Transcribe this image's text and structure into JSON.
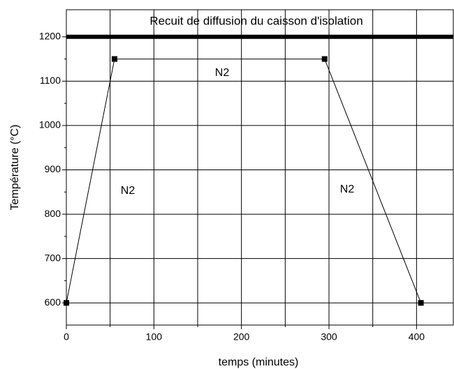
{
  "chart_data": {
    "type": "line",
    "title": "Recuit de diffusion du caisson d'isolation",
    "xlabel": "temps (minutes)",
    "ylabel": "Température (°C)",
    "x": [
      0,
      55,
      295,
      405
    ],
    "series": [
      {
        "name": "N2",
        "color": "#000000",
        "values": [
          600,
          1150,
          1150,
          600
        ]
      }
    ],
    "annotations": [
      "N2",
      "N2",
      "N2"
    ],
    "xlim": [
      0,
      442
    ],
    "xticks": [
      0,
      100,
      200,
      300,
      400
    ],
    "xminorticks": [
      50,
      150,
      250,
      350
    ],
    "ylim": [
      550,
      1261
    ],
    "yticks": [
      600,
      700,
      800,
      900,
      1000,
      1100,
      1200
    ],
    "yminorticks": [
      650,
      750,
      850,
      950,
      1050,
      1150
    ],
    "grid": true
  }
}
